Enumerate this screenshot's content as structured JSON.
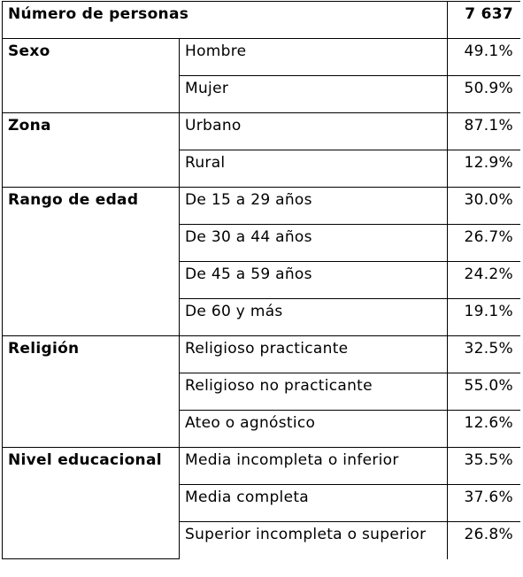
{
  "header": {
    "label": "Número de personas",
    "value": "7 637"
  },
  "groups": [
    {
      "name": "Sexo",
      "rows": [
        {
          "label": "Hombre",
          "value": "49.1%"
        },
        {
          "label": "Mujer",
          "value": "50.9%"
        }
      ]
    },
    {
      "name": "Zona",
      "rows": [
        {
          "label": "Urbano",
          "value": "87.1%"
        },
        {
          "label": "Rural",
          "value": "12.9%"
        }
      ]
    },
    {
      "name": "Rango de edad",
      "rows": [
        {
          "label": "De 15 a 29 años",
          "value": "30.0%"
        },
        {
          "label": "De 30 a 44 años",
          "value": "26.7%"
        },
        {
          "label": "De 45 a 59 años",
          "value": "24.2%"
        },
        {
          "label": "De 60 y más",
          "value": "19.1%"
        }
      ]
    },
    {
      "name": "Religión",
      "rows": [
        {
          "label": "Religioso practicante",
          "value": "32.5%"
        },
        {
          "label": "Religioso no practicante",
          "value": "55.0%"
        },
        {
          "label": "Ateo o agnóstico",
          "value": "12.6%"
        }
      ]
    },
    {
      "name": "Nivel educacional",
      "rows": [
        {
          "label": "Media incompleta o inferior",
          "value": "35.5%"
        },
        {
          "label": "Media completa",
          "value": "37.6%"
        },
        {
          "label": "Superior incompleta o superior",
          "value": "26.8%"
        }
      ]
    }
  ]
}
